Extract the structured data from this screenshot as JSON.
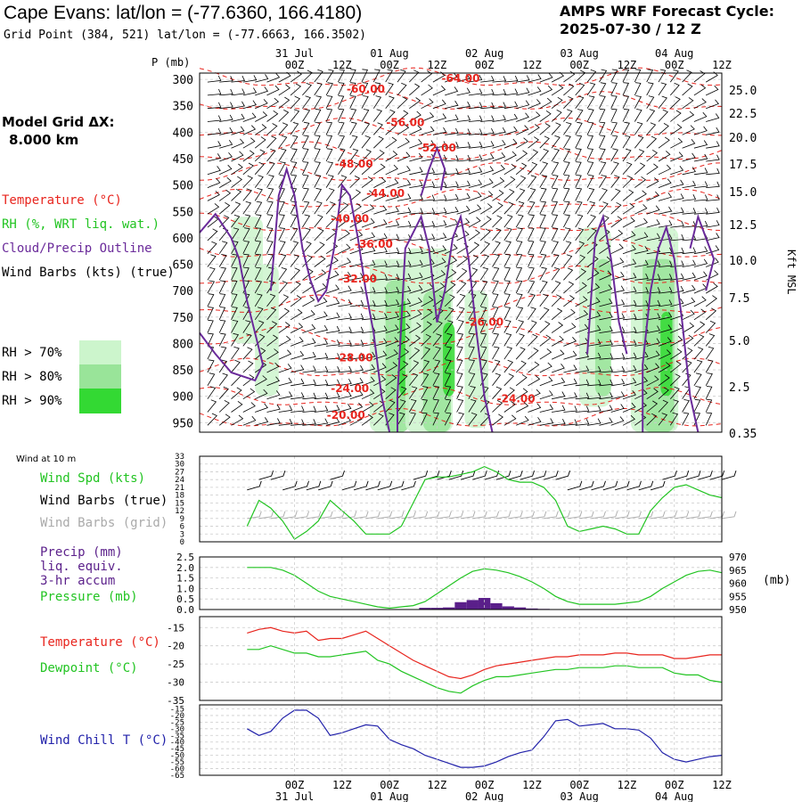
{
  "header": {
    "site_title": "Cape Evans:  lat/lon = (-77.6360, 166.4180)",
    "grid_point": "Grid Point (384, 521) lat/lon = (-77.6663, 166.3502)",
    "cycle_label": "AMPS WRF Forecast Cycle:",
    "cycle_value": "2025-07-30 / 12  Z"
  },
  "sidebar": {
    "grid_label": "Model Grid ΔX:",
    "grid_value": "8.000 km",
    "legend": [
      {
        "text": "Temperature (°C)",
        "color": "#e8251e"
      },
      {
        "text": "RH (%, WRT liq. wat.)",
        "color": "#22c422"
      },
      {
        "text": "Cloud/Precip Outline",
        "color": "#6a2a9a"
      },
      {
        "text": "Wind Barbs (kts) (true)",
        "color": "#000000"
      }
    ],
    "rh_legend": [
      {
        "text": "RH > 70%",
        "color": "#ccf5cc"
      },
      {
        "text": "RH > 80%",
        "color": "#99e499"
      },
      {
        "text": "RH > 90%",
        "color": "#33d933"
      }
    ]
  },
  "time_axis": {
    "hours": [
      "00Z",
      "12Z",
      "00Z",
      "12Z",
      "00Z",
      "12Z",
      "00Z",
      "12Z",
      "00Z",
      "12Z"
    ],
    "dates": [
      "31 Jul",
      "01 Aug",
      "02 Aug",
      "03 Aug",
      "04 Aug"
    ]
  },
  "colors": {
    "temperature": "#e8251e",
    "rh": "#22c422",
    "cloud": "#6a2a9a",
    "barbs_grid": "#aaaaaa",
    "pressure": "#22c422",
    "precip": "#5a1f8a",
    "windchill": "#2222aa"
  },
  "chart_data": [
    {
      "type": "heatmap",
      "ylabel": "P (mb)",
      "y2label": "Kft MSL",
      "y_ticks": [
        300,
        350,
        400,
        450,
        500,
        550,
        600,
        650,
        700,
        750,
        800,
        850,
        900,
        950
      ],
      "y2_ticks": [
        "25.0",
        "22.5",
        "20.0",
        "17.5",
        "15.0",
        "12.5",
        "10.0",
        "7.5",
        "5.0",
        "2.5",
        "0.35"
      ],
      "temperature_labels": [
        {
          "text": "-64.00",
          "t": 54,
          "p": 298
        },
        {
          "text": "-60.00",
          "t": 30,
          "p": 318
        },
        {
          "text": "-56.00",
          "t": 40,
          "p": 382
        },
        {
          "text": "-52.00",
          "t": 48,
          "p": 430
        },
        {
          "text": "-48.00",
          "t": 27,
          "p": 460
        },
        {
          "text": "-44.00",
          "t": 35,
          "p": 516
        },
        {
          "text": "-40.00",
          "t": 26,
          "p": 564
        },
        {
          "text": "-36.00",
          "t": 32,
          "p": 612
        },
        {
          "text": "-32.00",
          "t": 28,
          "p": 678
        },
        {
          "text": "-28.00",
          "t": 27,
          "p": 827
        },
        {
          "text": "-26.00",
          "t": 60,
          "p": 760
        },
        {
          "text": "-24.00",
          "t": 26,
          "p": 885
        },
        {
          "text": "-24.00",
          "t": 68,
          "p": 905
        },
        {
          "text": "-20.00",
          "t": 25,
          "p": 936
        }
      ]
    },
    {
      "type": "line",
      "title": "Wind at 10 m",
      "labels": [
        {
          "text": "Wind Spd (kts)",
          "color": "#22c422"
        },
        {
          "text": "Wind Barbs (true)",
          "color": "#000000"
        },
        {
          "text": "Wind Barbs (grid)",
          "color": "#aaaaaa"
        }
      ],
      "y_ticks": [
        0,
        3,
        6,
        9,
        12,
        15,
        18,
        21,
        24,
        27,
        30,
        33
      ],
      "ylim": [
        0,
        33
      ],
      "x": [
        0,
        3,
        6,
        9,
        12,
        15,
        18,
        21,
        24,
        27,
        30,
        33,
        36,
        39,
        42,
        45,
        48,
        51,
        54,
        57,
        60,
        63,
        66,
        69,
        72,
        75,
        78,
        81,
        84,
        87,
        90,
        93,
        96,
        99,
        102,
        105,
        108,
        111,
        114,
        117,
        120
      ],
      "series": [
        {
          "name": "Wind Spd (kts)",
          "values": [
            6,
            16,
            13,
            8,
            1,
            4,
            8,
            16,
            12,
            8,
            3,
            3,
            3,
            6,
            15,
            24,
            25,
            25,
            26,
            27,
            29,
            27,
            24,
            23,
            23,
            21,
            16,
            6,
            4,
            5,
            6,
            5,
            3,
            3,
            12,
            17,
            21,
            22,
            20,
            18,
            17
          ]
        }
      ]
    },
    {
      "type": "bar",
      "labels": [
        {
          "text": "Precip (mm)",
          "color": "#5a1f8a"
        },
        {
          "text": "liq. equiv.",
          "color": "#5a1f8a"
        },
        {
          "text": "3-hr accum",
          "color": "#5a1f8a"
        },
        {
          "text": "Pressure (mb)",
          "color": "#22c422"
        }
      ],
      "y_ticks": [
        "0.0",
        "0.5",
        "1.0",
        "1.5",
        "2.0",
        "2.5"
      ],
      "y2_ticks": [
        "950",
        "955",
        "960",
        "965",
        "970"
      ],
      "y2label": "(mb)",
      "ylim": [
        0,
        2.5
      ],
      "y2lim": [
        950,
        970
      ],
      "x": [
        0,
        3,
        6,
        9,
        12,
        15,
        18,
        21,
        24,
        27,
        30,
        33,
        36,
        39,
        42,
        45,
        48,
        51,
        54,
        57,
        60,
        63,
        66,
        69,
        72,
        75,
        78,
        81,
        84,
        87,
        90,
        93,
        96,
        99,
        102,
        105,
        108,
        111,
        114,
        117,
        120
      ],
      "series": [
        {
          "name": "Precip (mm)",
          "values": [
            0,
            0,
            0,
            0,
            0,
            0,
            0,
            0,
            0,
            0,
            0,
            0,
            0,
            0,
            0.02,
            0.08,
            0.08,
            0.1,
            0.35,
            0.45,
            0.55,
            0.3,
            0.15,
            0.1,
            0.05,
            0.03,
            0.02,
            0,
            0,
            0,
            0,
            0,
            0,
            0,
            0,
            0,
            0,
            0,
            0,
            0,
            0
          ]
        },
        {
          "name": "Pressure (mb)",
          "values": [
            966,
            966,
            966,
            965,
            963,
            960,
            957,
            955,
            954,
            953,
            952,
            951,
            950.5,
            951,
            951.5,
            953,
            956,
            959,
            962,
            964.5,
            965.5,
            965,
            964,
            962.5,
            960.5,
            958,
            955,
            953,
            952,
            952,
            952,
            952,
            952.5,
            953,
            955,
            958,
            960.5,
            963,
            964.5,
            965,
            964
          ]
        }
      ]
    },
    {
      "type": "line",
      "labels": [
        {
          "text": "Temperature (°C)",
          "color": "#e8251e"
        },
        {
          "text": "Dewpoint (°C)",
          "color": "#22c422"
        }
      ],
      "y_ticks": [
        -15,
        -20,
        -25,
        -30,
        -35
      ],
      "ylim": [
        -35,
        -12
      ],
      "x": [
        0,
        3,
        6,
        9,
        12,
        15,
        18,
        21,
        24,
        27,
        30,
        33,
        36,
        39,
        42,
        45,
        48,
        51,
        54,
        57,
        60,
        63,
        66,
        69,
        72,
        75,
        78,
        81,
        84,
        87,
        90,
        93,
        96,
        99,
        102,
        105,
        108,
        111,
        114,
        117,
        120
      ],
      "series": [
        {
          "name": "Temperature (°C)",
          "values": [
            -16.5,
            -15.5,
            -15,
            -16,
            -16.5,
            -16,
            -18.5,
            -18,
            -18,
            -17,
            -16,
            -18,
            -20,
            -22,
            -24,
            -25.5,
            -27,
            -28.5,
            -29,
            -28,
            -26.5,
            -25.5,
            -25,
            -24.5,
            -24,
            -23.5,
            -23,
            -23,
            -22.5,
            -22.5,
            -22.5,
            -22,
            -22,
            -22.5,
            -22.5,
            -22.5,
            -23.5,
            -23.5,
            -23,
            -22.5,
            -22.5
          ]
        },
        {
          "name": "Dewpoint (°C)",
          "values": [
            -21,
            -21,
            -20,
            -21,
            -22,
            -22,
            -23,
            -23,
            -22.5,
            -22,
            -21.5,
            -24,
            -25,
            -27,
            -28.5,
            -30,
            -31.5,
            -32.5,
            -33,
            -31,
            -29.5,
            -28.5,
            -28.5,
            -28,
            -27.5,
            -27,
            -26.5,
            -26.5,
            -26,
            -26,
            -26,
            -25.5,
            -25.5,
            -26,
            -26,
            -26,
            -27.5,
            -28,
            -28,
            -29.5,
            -30
          ]
        }
      ]
    },
    {
      "type": "line",
      "labels": [
        {
          "text": "Wind Chill T (°C)",
          "color": "#2222aa"
        }
      ],
      "y_ticks": [
        -15,
        -20,
        -25,
        -30,
        -35,
        -40,
        -45,
        -50,
        -55,
        -60,
        -65
      ],
      "ylim": [
        -65,
        -12
      ],
      "x": [
        0,
        3,
        6,
        9,
        12,
        15,
        18,
        21,
        24,
        27,
        30,
        33,
        36,
        39,
        42,
        45,
        48,
        51,
        54,
        57,
        60,
        63,
        66,
        69,
        72,
        75,
        78,
        81,
        84,
        87,
        90,
        93,
        96,
        99,
        102,
        105,
        108,
        111,
        114,
        117,
        120
      ],
      "series": [
        {
          "name": "Wind Chill T (°C)",
          "values": [
            -30,
            -35,
            -32,
            -22,
            -16,
            -16,
            -22,
            -35,
            -33,
            -30,
            -27,
            -28,
            -38,
            -42,
            -45,
            -50,
            -53,
            -56,
            -59,
            -59,
            -58,
            -55,
            -51,
            -48,
            -46,
            -36,
            -24,
            -23,
            -28,
            -27,
            -26,
            -30,
            -30,
            -31,
            -37,
            -48,
            -53,
            -55,
            -53,
            -51,
            -50
          ]
        }
      ]
    }
  ]
}
